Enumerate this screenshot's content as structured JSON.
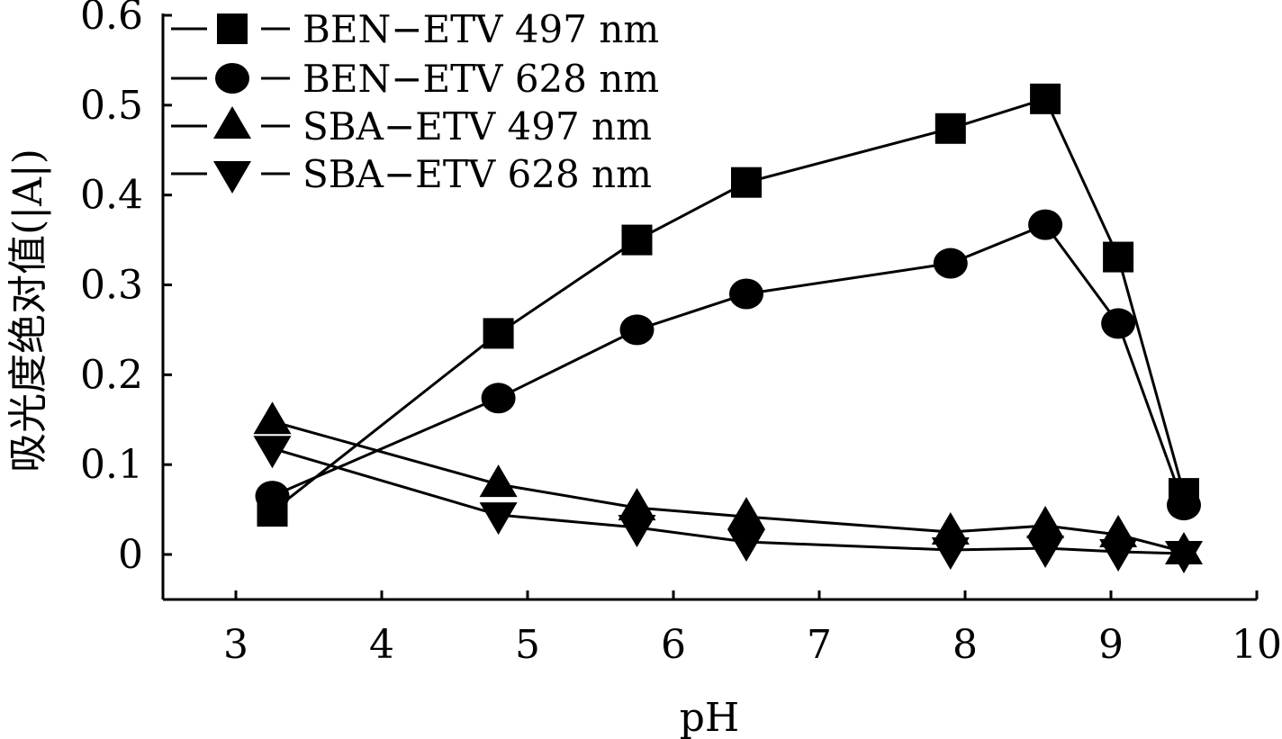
{
  "chart_data": {
    "type": "line",
    "xlabel": "pH",
    "ylabel": "吸光度绝对值(|A|)",
    "xlim": [
      2.5,
      10
    ],
    "ylim": [
      -0.05,
      0.6
    ],
    "xticks": [
      3,
      4,
      5,
      6,
      7,
      8,
      9,
      10
    ],
    "yticks": [
      0,
      0.1,
      0.2,
      0.3,
      0.4,
      0.5,
      0.6
    ],
    "xtick_labels": [
      "3",
      "4",
      "5",
      "6",
      "7",
      "8",
      "9",
      "10"
    ],
    "ytick_labels": [
      "0",
      "0.1",
      "0.2",
      "0.3",
      "0.4",
      "0.5",
      "0.6"
    ],
    "grid": false,
    "legend_position": "top-left",
    "series": [
      {
        "name": "BEN−ETV 497 nm",
        "marker": "square",
        "x": [
          3.25,
          4.8,
          5.75,
          6.5,
          7.9,
          8.55,
          9.05,
          9.5
        ],
        "y": [
          0.048,
          0.246,
          0.35,
          0.414,
          0.474,
          0.507,
          0.331,
          0.068
        ]
      },
      {
        "name": "BEN−ETV 628 nm",
        "marker": "circle",
        "x": [
          3.25,
          4.8,
          5.75,
          6.5,
          7.9,
          8.55,
          9.05,
          9.5
        ],
        "y": [
          0.065,
          0.174,
          0.25,
          0.29,
          0.324,
          0.367,
          0.257,
          0.055
        ]
      },
      {
        "name": "SBA−ETV 497 nm",
        "marker": "triangle-up",
        "x": [
          3.25,
          4.8,
          5.75,
          6.5,
          7.9,
          8.55,
          9.05,
          9.5
        ],
        "y": [
          0.148,
          0.078,
          0.052,
          0.042,
          0.025,
          0.032,
          0.022,
          0.003
        ]
      },
      {
        "name": "SBA−ETV 628 nm",
        "marker": "triangle-down",
        "x": [
          3.25,
          4.8,
          5.75,
          6.5,
          7.9,
          8.55,
          9.05,
          9.5
        ],
        "y": [
          0.118,
          0.044,
          0.03,
          0.014,
          0.005,
          0.007,
          0.003,
          0.001
        ]
      }
    ]
  }
}
